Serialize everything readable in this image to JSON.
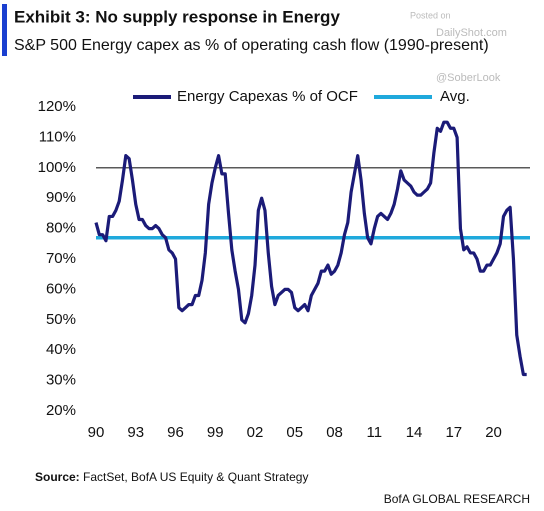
{
  "header": {
    "title": "Exhibit 3: No supply response in Energy",
    "subtitle": "S&P 500 Energy capex as % of operating cash flow (1990-present)"
  },
  "watermark": {
    "line1": "Posted on",
    "line2": "DailyShot.com",
    "line3": "@SoberLook"
  },
  "chart_data": {
    "type": "line",
    "x": [
      1990,
      1990.25,
      1990.5,
      1990.75,
      1991,
      1991.25,
      1991.5,
      1991.75,
      1992,
      1992.25,
      1992.5,
      1992.75,
      1993,
      1993.25,
      1993.5,
      1993.75,
      1994,
      1994.25,
      1994.5,
      1994.75,
      1995,
      1995.25,
      1995.5,
      1995.75,
      1996,
      1996.25,
      1996.5,
      1996.75,
      1997,
      1997.25,
      1997.5,
      1997.75,
      1998,
      1998.25,
      1998.5,
      1998.75,
      1999,
      1999.25,
      1999.5,
      1999.75,
      2000,
      2000.25,
      2000.5,
      2000.75,
      2001,
      2001.25,
      2001.5,
      2001.75,
      2002,
      2002.25,
      2002.5,
      2002.75,
      2003,
      2003.25,
      2003.5,
      2003.75,
      2004,
      2004.25,
      2004.5,
      2004.75,
      2005,
      2005.25,
      2005.5,
      2005.75,
      2006,
      2006.25,
      2006.5,
      2006.75,
      2007,
      2007.25,
      2007.5,
      2007.75,
      2008,
      2008.25,
      2008.5,
      2008.75,
      2009,
      2009.25,
      2009.5,
      2009.75,
      2010,
      2010.25,
      2010.5,
      2010.75,
      2011,
      2011.25,
      2011.5,
      2011.75,
      2012,
      2012.25,
      2012.5,
      2012.75,
      2013,
      2013.25,
      2013.5,
      2013.75,
      2014,
      2014.25,
      2014.5,
      2014.75,
      2015,
      2015.25,
      2015.5,
      2015.75,
      2016,
      2016.25,
      2016.5,
      2016.75,
      2017,
      2017.25,
      2017.5,
      2017.75,
      2018,
      2018.25,
      2018.5,
      2018.75,
      2019,
      2019.25,
      2019.5,
      2019.75,
      2020,
      2020.25,
      2020.5,
      2020.75,
      2021,
      2021.25,
      2021.5,
      2021.75,
      2022,
      2022.25,
      2022.5
    ],
    "series": [
      {
        "name": "Energy Capexas % of OCF",
        "color": "#1b1b78",
        "values": [
          82,
          78,
          78,
          76,
          84,
          84,
          86,
          89,
          96,
          104,
          103,
          96,
          88,
          83,
          83,
          81,
          80,
          80,
          81,
          80,
          78,
          77,
          73,
          72,
          70,
          54,
          53,
          54,
          55,
          55,
          58,
          58,
          63,
          72,
          88,
          95,
          100,
          104,
          98,
          98,
          85,
          73,
          66,
          60,
          50,
          49,
          52,
          58,
          68,
          86,
          90,
          86,
          72,
          61,
          55,
          58,
          59,
          60,
          60,
          59,
          54,
          53,
          54,
          55,
          53,
          58,
          60,
          62,
          66,
          66,
          68,
          65,
          66,
          68,
          72,
          78,
          82,
          92,
          98,
          104,
          96,
          85,
          77,
          75,
          80,
          84,
          85,
          84,
          83,
          85,
          88,
          93,
          99,
          96,
          95,
          94,
          92,
          91,
          91,
          92,
          93,
          95,
          105,
          113,
          112,
          115,
          115,
          113,
          113,
          110,
          80,
          73,
          74,
          72,
          72,
          70,
          66,
          66,
          68,
          68,
          70,
          72,
          75,
          84,
          86,
          87,
          70,
          45,
          38,
          32,
          32
        ]
      }
    ],
    "average": {
      "name": "Avg.",
      "value": 77,
      "color": "#1fa9dc"
    },
    "hlines": [
      100
    ],
    "xlim": [
      1990,
      2022.75
    ],
    "ylim": [
      20,
      120
    ],
    "xticks": [
      {
        "value": 1990,
        "label": "90"
      },
      {
        "value": 1993,
        "label": "93"
      },
      {
        "value": 1996,
        "label": "96"
      },
      {
        "value": 1999,
        "label": "99"
      },
      {
        "value": 2002,
        "label": "02"
      },
      {
        "value": 2005,
        "label": "05"
      },
      {
        "value": 2008,
        "label": "08"
      },
      {
        "value": 2011,
        "label": "11"
      },
      {
        "value": 2014,
        "label": "14"
      },
      {
        "value": 2017,
        "label": "17"
      },
      {
        "value": 2020,
        "label": "20"
      }
    ],
    "yticks": [
      {
        "value": 20,
        "label": "20%"
      },
      {
        "value": 30,
        "label": "30%"
      },
      {
        "value": 40,
        "label": "40%"
      },
      {
        "value": 50,
        "label": "50%"
      },
      {
        "value": 60,
        "label": "60%"
      },
      {
        "value": 70,
        "label": "70%"
      },
      {
        "value": 80,
        "label": "80%"
      },
      {
        "value": 90,
        "label": "90%"
      },
      {
        "value": 100,
        "label": "100%"
      },
      {
        "value": 110,
        "label": "110%"
      },
      {
        "value": 120,
        "label": "120%"
      }
    ]
  },
  "footer": {
    "source_label": "Source:",
    "source_text": "FactSet, BofA US Equity & Quant Strategy",
    "brand": "BofA GLOBAL RESEARCH"
  }
}
